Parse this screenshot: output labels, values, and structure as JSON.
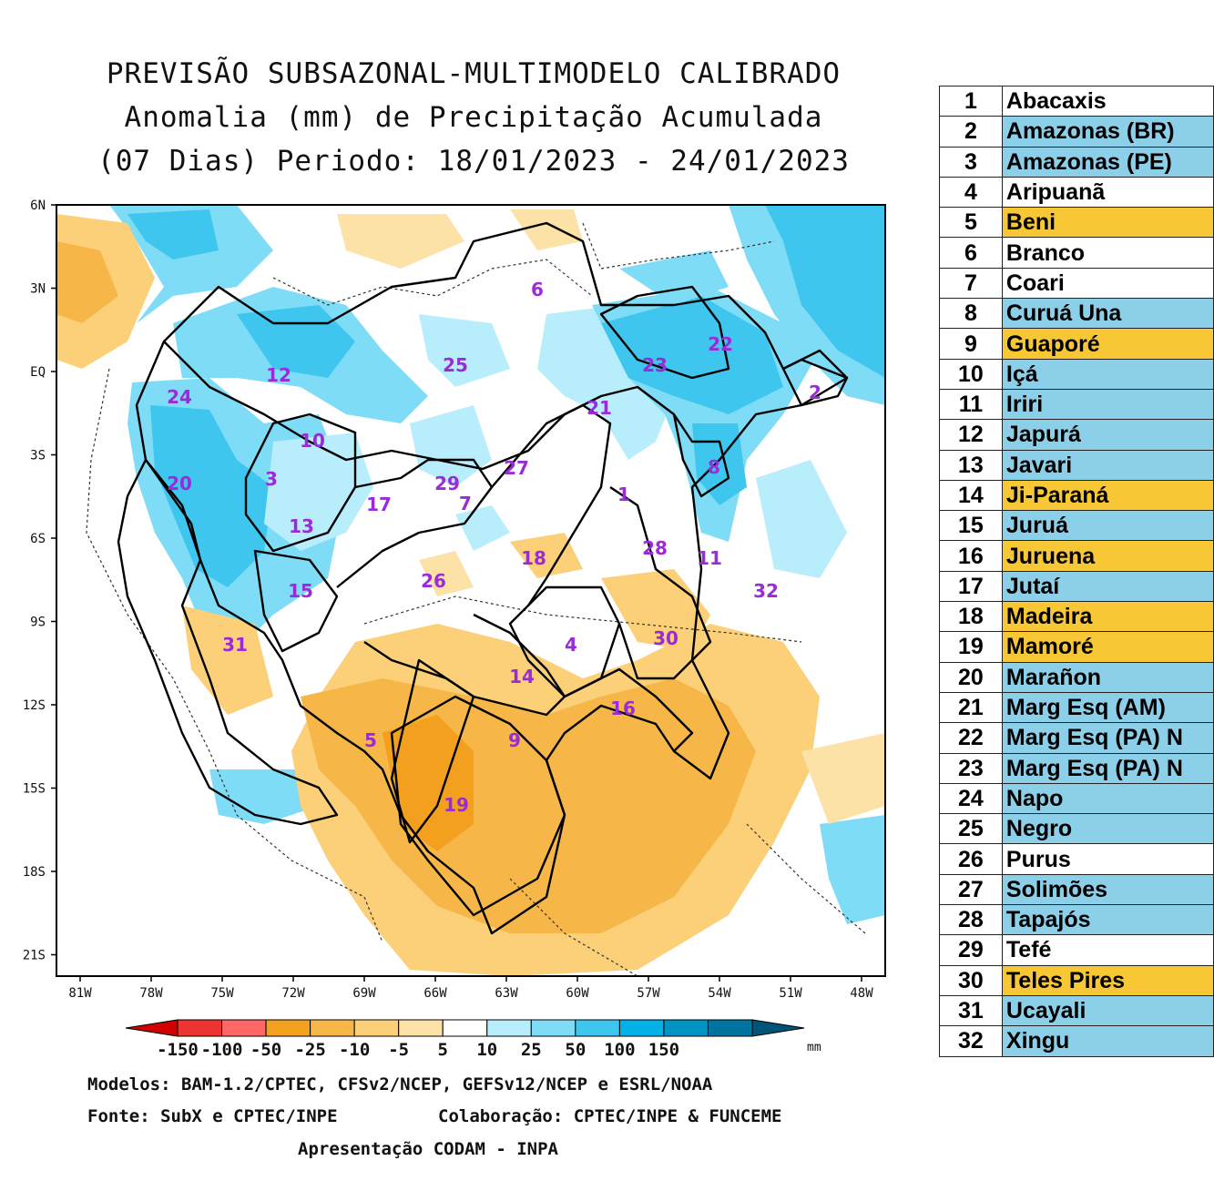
{
  "title": {
    "line1": "PREVISÃO SUBSAZONAL-MULTIMODELO CALIBRADO",
    "line2": "Anomalia (mm) de Precipitação Acumulada",
    "line3": "(07 Dias) Periodo: 18/01/2023 - 24/01/2023"
  },
  "axes": {
    "lat_labels": [
      "6N",
      "3N",
      "EQ",
      "3S",
      "6S",
      "9S",
      "12S",
      "15S",
      "18S",
      "21S"
    ],
    "lon_labels": [
      "81W",
      "78W",
      "75W",
      "72W",
      "69W",
      "66W",
      "63W",
      "60W",
      "57W",
      "54W",
      "51W",
      "48W"
    ]
  },
  "colorbar": {
    "labels": [
      "-150",
      "-100",
      "-50",
      "-25",
      "-10",
      "-5",
      "5",
      "10",
      "25",
      "50",
      "100",
      "150"
    ],
    "unit": "mm",
    "colors": [
      "#d00000",
      "#ee3333",
      "#ff6666",
      "#f3a01e",
      "#f7b648",
      "#fbd079",
      "#fde2a8",
      "#ffffff",
      "#b8eefc",
      "#7fdcf6",
      "#3ec6ef",
      "#00b2e8",
      "#0093c4",
      "#00749e",
      "#005577"
    ]
  },
  "basins": [
    {
      "id": "1",
      "name": "Abacaxis",
      "color": "#ffffff"
    },
    {
      "id": "2",
      "name": "Amazonas (BR)",
      "color": "#8ccfe8"
    },
    {
      "id": "3",
      "name": "Amazonas (PE)",
      "color": "#8ccfe8"
    },
    {
      "id": "4",
      "name": "Aripuanã",
      "color": "#ffffff"
    },
    {
      "id": "5",
      "name": "Beni",
      "color": "#f8c735"
    },
    {
      "id": "6",
      "name": "Branco",
      "color": "#ffffff"
    },
    {
      "id": "7",
      "name": "Coari",
      "color": "#ffffff"
    },
    {
      "id": "8",
      "name": "Curuá Una",
      "color": "#8ccfe8"
    },
    {
      "id": "9",
      "name": "Guaporé",
      "color": "#f8c735"
    },
    {
      "id": "10",
      "name": "Içá",
      "color": "#8ccfe8"
    },
    {
      "id": "11",
      "name": "Iriri",
      "color": "#8ccfe8"
    },
    {
      "id": "12",
      "name": "Japurá",
      "color": "#8ccfe8"
    },
    {
      "id": "13",
      "name": "Javari",
      "color": "#8ccfe8"
    },
    {
      "id": "14",
      "name": "Ji-Paraná",
      "color": "#f8c735"
    },
    {
      "id": "15",
      "name": "Juruá",
      "color": "#8ccfe8"
    },
    {
      "id": "16",
      "name": "Juruena",
      "color": "#f8c735"
    },
    {
      "id": "17",
      "name": "Jutaí",
      "color": "#8ccfe8"
    },
    {
      "id": "18",
      "name": "Madeira",
      "color": "#f8c735"
    },
    {
      "id": "19",
      "name": "Mamoré",
      "color": "#f8c735"
    },
    {
      "id": "20",
      "name": "Marañon",
      "color": "#8ccfe8"
    },
    {
      "id": "21",
      "name": "Marg Esq (AM)",
      "color": "#8ccfe8"
    },
    {
      "id": "22",
      "name": "Marg Esq (PA) N",
      "color": "#8ccfe8"
    },
    {
      "id": "23",
      "name": "Marg Esq (PA) N",
      "color": "#8ccfe8"
    },
    {
      "id": "24",
      "name": "Napo",
      "color": "#8ccfe8"
    },
    {
      "id": "25",
      "name": "Negro",
      "color": "#8ccfe8"
    },
    {
      "id": "26",
      "name": "Purus",
      "color": "#ffffff"
    },
    {
      "id": "27",
      "name": "Solimões",
      "color": "#8ccfe8"
    },
    {
      "id": "28",
      "name": "Tapajós",
      "color": "#8ccfe8"
    },
    {
      "id": "29",
      "name": "Tefé",
      "color": "#ffffff"
    },
    {
      "id": "30",
      "name": "Teles Pires",
      "color": "#f8c735"
    },
    {
      "id": "31",
      "name": "Ucayali",
      "color": "#8ccfe8"
    },
    {
      "id": "32",
      "name": "Xingu",
      "color": "#8ccfe8"
    }
  ],
  "footer": {
    "models": "Modelos: BAM-1.2/CPTEC, CFSv2/NCEP, GEFSv12/NCEP e ESRL/NOAA",
    "source": "Fonte: SubX e CPTEC/INPE",
    "collab": "Colaboração: CPTEC/INPE & FUNCEME",
    "presentation": "Apresentação CODAM - INPA"
  }
}
